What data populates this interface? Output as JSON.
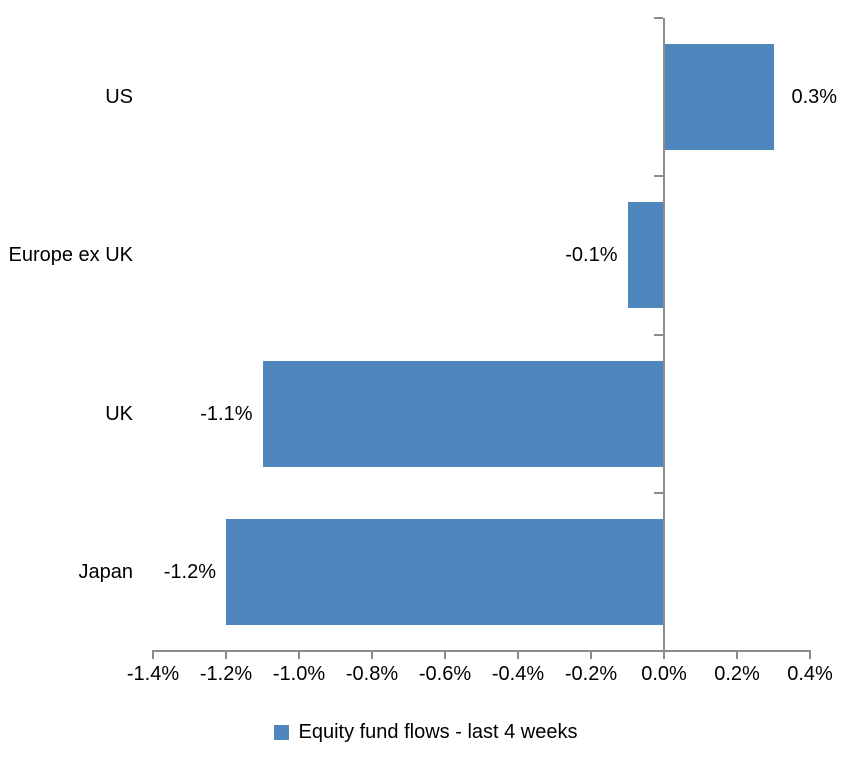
{
  "chart_data": {
    "type": "bar",
    "orientation": "horizontal",
    "title": "",
    "xlabel": "",
    "ylabel": "",
    "categories": [
      "US",
      "Europe ex UK",
      "UK",
      "Japan"
    ],
    "values": [
      0.3,
      -0.1,
      -1.1,
      -1.2
    ],
    "value_labels": [
      "0.3%",
      "-0.1%",
      "-1.1%",
      "-1.2%"
    ],
    "series_name": "Equity fund flows - last 4 weeks",
    "xlim": [
      -1.4,
      0.4
    ],
    "x_ticks": [
      -1.4,
      -1.2,
      -1.0,
      -0.8,
      -0.6,
      -0.4,
      -0.2,
      0.0,
      0.2,
      0.4
    ],
    "x_tick_labels": [
      "-1.4%",
      "-1.2%",
      "-1.0%",
      "-0.8%",
      "-0.6%",
      "-0.4%",
      "-0.2%",
      "0.0%",
      "0.2%",
      "0.4%"
    ],
    "grid": false,
    "legend_position": "bottom",
    "colors": {
      "bar": "#4E86BD",
      "axis": "#8C8C8C",
      "text": "#000000",
      "background": "#FFFFFF"
    }
  }
}
